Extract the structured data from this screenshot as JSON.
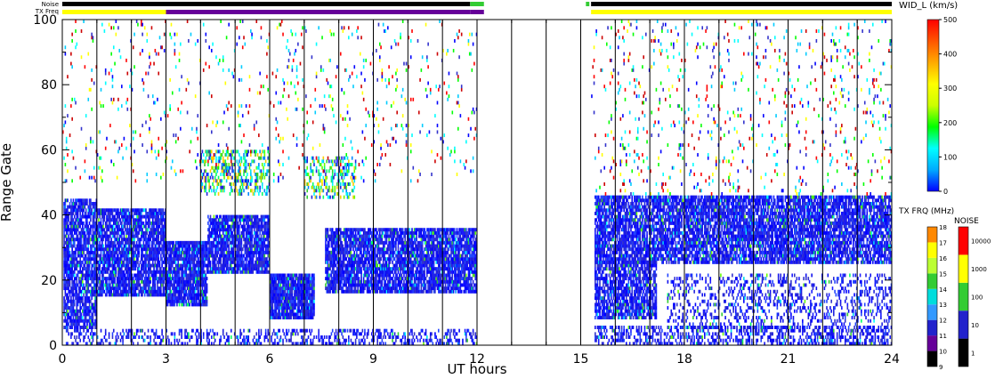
{
  "chart_data": {
    "type": "heatmap",
    "title": "",
    "xlabel": "UT hours",
    "ylabel": "Range Gate",
    "xlim": [
      0,
      24
    ],
    "ylim": [
      0,
      100
    ],
    "x_ticks": [
      "0",
      "3",
      "6",
      "9",
      "12",
      "15",
      "18",
      "21",
      "24"
    ],
    "y_ticks": [
      "0",
      "20",
      "40",
      "60",
      "80",
      "100"
    ],
    "hour_gridlines": [
      1,
      2,
      3,
      4,
      5,
      6,
      7,
      8,
      9,
      10,
      11,
      12,
      13,
      14,
      15,
      16,
      17,
      18,
      19,
      20,
      21,
      22,
      23
    ],
    "data_gap_hours": [
      12.0,
      15.3
    ],
    "top_bars": {
      "noise_label": "Noise",
      "txfreq_label": "TX Freq",
      "noise_segments": [
        {
          "from": 0,
          "to": 11.8,
          "color": "#000000"
        },
        {
          "from": 11.8,
          "to": 12.2,
          "color": "#33cc33"
        },
        {
          "from": 15.15,
          "to": 15.25,
          "color": "#33cc33"
        },
        {
          "from": 15.3,
          "to": 24,
          "color": "#000000"
        }
      ],
      "txfreq_segments": [
        {
          "from": 0,
          "to": 3.0,
          "color": "#ffff00"
        },
        {
          "from": 3.0,
          "to": 11.8,
          "color": "#660099"
        },
        {
          "from": 11.8,
          "to": 12.2,
          "color": "#660099"
        },
        {
          "from": 15.3,
          "to": 24,
          "color": "#ffff00"
        }
      ]
    },
    "scatter_regions": [
      {
        "x": [
          0.05,
          1.0
        ],
        "y": [
          5,
          45
        ],
        "density": 0.8,
        "level": "low"
      },
      {
        "x": [
          1.0,
          3.0
        ],
        "y": [
          15,
          42
        ],
        "density": 0.85,
        "level": "low"
      },
      {
        "x": [
          3.0,
          4.2
        ],
        "y": [
          12,
          32
        ],
        "density": 0.9,
        "level": "low"
      },
      {
        "x": [
          4.2,
          6.0
        ],
        "y": [
          22,
          40
        ],
        "density": 0.85,
        "level": "low"
      },
      {
        "x": [
          0.1,
          12.0
        ],
        "y": [
          0,
          5
        ],
        "density": 0.35,
        "level": "low"
      },
      {
        "x": [
          6.0,
          7.3
        ],
        "y": [
          8,
          22
        ],
        "density": 0.95,
        "level": "low"
      },
      {
        "x": [
          7.6,
          12.0
        ],
        "y": [
          16,
          36
        ],
        "density": 0.85,
        "level": "low"
      },
      {
        "x": [
          4.0,
          6.0
        ],
        "y": [
          46,
          60
        ],
        "density": 0.4,
        "level": "mid"
      },
      {
        "x": [
          7.0,
          8.5
        ],
        "y": [
          45,
          58
        ],
        "density": 0.35,
        "level": "mid"
      },
      {
        "x": [
          15.4,
          24.0
        ],
        "y": [
          25,
          46
        ],
        "density": 0.8,
        "level": "low"
      },
      {
        "x": [
          15.4,
          17.2
        ],
        "y": [
          8,
          26
        ],
        "density": 0.75,
        "level": "low"
      },
      {
        "x": [
          15.4,
          24.0
        ],
        "y": [
          0,
          6
        ],
        "density": 0.45,
        "level": "low"
      },
      {
        "x": [
          17.5,
          24.0
        ],
        "y": [
          5,
          22
        ],
        "density": 0.25,
        "level": "low"
      },
      {
        "x": [
          0,
          12.0
        ],
        "y": [
          50,
          100
        ],
        "density": 0.04,
        "level": "mixed"
      },
      {
        "x": [
          15.3,
          24.0
        ],
        "y": [
          46,
          100
        ],
        "density": 0.05,
        "level": "mixed"
      }
    ],
    "colorbars": [
      {
        "label": "WID_L (km/s)",
        "ticks": [
          "0",
          "100",
          "200",
          "300",
          "400",
          "500"
        ],
        "colors": [
          "#0000ff",
          "#00aaff",
          "#00ffff",
          "#00ff00",
          "#ccff00",
          "#ffff00",
          "#ffaa00",
          "#ff5500",
          "#ff0000"
        ]
      },
      {
        "label": "TX FRQ (MHz)",
        "ticks": [
          "9",
          "10",
          "11",
          "12",
          "13",
          "14",
          "15",
          "16",
          "17",
          "18"
        ],
        "colors": [
          "#000000",
          "#660099",
          "#2222cc",
          "#3399ff",
          "#00dddd",
          "#33cc33",
          "#bbff33",
          "#ffff00",
          "#ff8800",
          "#ff0000"
        ]
      },
      {
        "label": "NOISE",
        "ticks": [
          "1",
          "10",
          "100",
          "1000",
          "10000"
        ],
        "colors": [
          "#000000",
          "#2222cc",
          "#33cc33",
          "#ffff00",
          "#ff0000"
        ]
      }
    ]
  }
}
